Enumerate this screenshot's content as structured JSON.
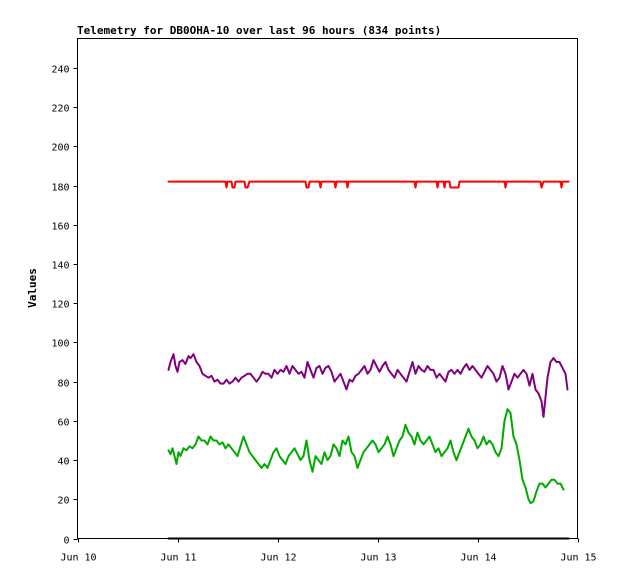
{
  "chart_data": {
    "type": "line",
    "title": "Telemetry for DB0OHA-10 over last 96 hours (834 points)",
    "xlabel": "",
    "ylabel": "Values",
    "x_ticks": [
      "Jun 10",
      "Jun 11",
      "Jun 12",
      "Jun 13",
      "Jun 14",
      "Jun 15"
    ],
    "x_range_days": [
      0,
      5
    ],
    "ylim": [
      0,
      255
    ],
    "y_ticks": [
      0,
      20,
      40,
      60,
      80,
      100,
      120,
      140,
      160,
      180,
      200,
      220,
      240
    ],
    "grid": false,
    "legend": "none",
    "series": [
      {
        "color": "#ff0000",
        "points": [
          [
            0.91,
            182
          ],
          [
            1.4,
            182
          ],
          [
            1.48,
            182
          ],
          [
            1.49,
            179
          ],
          [
            1.5,
            182
          ],
          [
            1.54,
            182
          ],
          [
            1.55,
            179
          ],
          [
            1.57,
            179
          ],
          [
            1.58,
            182
          ],
          [
            1.67,
            182
          ],
          [
            1.68,
            179
          ],
          [
            1.7,
            179
          ],
          [
            1.72,
            182
          ],
          [
            2.28,
            182
          ],
          [
            2.29,
            179
          ],
          [
            2.31,
            179
          ],
          [
            2.32,
            182
          ],
          [
            2.42,
            182
          ],
          [
            2.43,
            179
          ],
          [
            2.44,
            182
          ],
          [
            2.57,
            182
          ],
          [
            2.58,
            179
          ],
          [
            2.59,
            182
          ],
          [
            2.69,
            182
          ],
          [
            2.7,
            179
          ],
          [
            2.71,
            182
          ],
          [
            3.37,
            182
          ],
          [
            3.38,
            179
          ],
          [
            3.39,
            182
          ],
          [
            3.59,
            182
          ],
          [
            3.6,
            179
          ],
          [
            3.61,
            182
          ],
          [
            3.66,
            182
          ],
          [
            3.67,
            179
          ],
          [
            3.68,
            182
          ],
          [
            3.72,
            182
          ],
          [
            3.73,
            179
          ],
          [
            3.75,
            179
          ],
          [
            3.77,
            179
          ],
          [
            3.79,
            179
          ],
          [
            3.81,
            179
          ],
          [
            3.82,
            182
          ],
          [
            4.27,
            182
          ],
          [
            4.28,
            179
          ],
          [
            4.29,
            182
          ],
          [
            4.63,
            182
          ],
          [
            4.64,
            179
          ],
          [
            4.66,
            182
          ],
          [
            4.83,
            182
          ],
          [
            4.84,
            179
          ],
          [
            4.85,
            182
          ],
          [
            4.91,
            182
          ]
        ]
      },
      {
        "color": "#800080",
        "points": [
          [
            0.91,
            86
          ],
          [
            0.93,
            90
          ],
          [
            0.96,
            94
          ],
          [
            0.98,
            88
          ],
          [
            1.0,
            85
          ],
          [
            1.02,
            90
          ],
          [
            1.05,
            91
          ],
          [
            1.08,
            89
          ],
          [
            1.11,
            93
          ],
          [
            1.13,
            92
          ],
          [
            1.16,
            94
          ],
          [
            1.19,
            90
          ],
          [
            1.22,
            88
          ],
          [
            1.25,
            84
          ],
          [
            1.28,
            83
          ],
          [
            1.31,
            82
          ],
          [
            1.34,
            83
          ],
          [
            1.37,
            80
          ],
          [
            1.4,
            81
          ],
          [
            1.43,
            79
          ],
          [
            1.46,
            79
          ],
          [
            1.49,
            81
          ],
          [
            1.52,
            79
          ],
          [
            1.55,
            80
          ],
          [
            1.58,
            82
          ],
          [
            1.61,
            80
          ],
          [
            1.64,
            82
          ],
          [
            1.67,
            83
          ],
          [
            1.7,
            84
          ],
          [
            1.73,
            84
          ],
          [
            1.76,
            82
          ],
          [
            1.79,
            80
          ],
          [
            1.82,
            82
          ],
          [
            1.85,
            85
          ],
          [
            1.88,
            84
          ],
          [
            1.91,
            84
          ],
          [
            1.94,
            82
          ],
          [
            1.97,
            86
          ],
          [
            2.0,
            84
          ],
          [
            2.03,
            86
          ],
          [
            2.06,
            85
          ],
          [
            2.09,
            88
          ],
          [
            2.12,
            84
          ],
          [
            2.15,
            88
          ],
          [
            2.18,
            86
          ],
          [
            2.21,
            84
          ],
          [
            2.24,
            85
          ],
          [
            2.27,
            82
          ],
          [
            2.3,
            90
          ],
          [
            2.33,
            86
          ],
          [
            2.36,
            82
          ],
          [
            2.39,
            87
          ],
          [
            2.42,
            88
          ],
          [
            2.45,
            84
          ],
          [
            2.48,
            87
          ],
          [
            2.51,
            88
          ],
          [
            2.54,
            85
          ],
          [
            2.57,
            80
          ],
          [
            2.6,
            82
          ],
          [
            2.63,
            84
          ],
          [
            2.66,
            80
          ],
          [
            2.69,
            76
          ],
          [
            2.72,
            81
          ],
          [
            2.75,
            80
          ],
          [
            2.78,
            83
          ],
          [
            2.81,
            84
          ],
          [
            2.84,
            86
          ],
          [
            2.87,
            88
          ],
          [
            2.9,
            84
          ],
          [
            2.93,
            86
          ],
          [
            2.96,
            91
          ],
          [
            2.99,
            88
          ],
          [
            3.02,
            85
          ],
          [
            3.05,
            88
          ],
          [
            3.08,
            90
          ],
          [
            3.11,
            86
          ],
          [
            3.14,
            84
          ],
          [
            3.17,
            82
          ],
          [
            3.2,
            86
          ],
          [
            3.23,
            84
          ],
          [
            3.26,
            82
          ],
          [
            3.29,
            80
          ],
          [
            3.32,
            85
          ],
          [
            3.35,
            90
          ],
          [
            3.38,
            84
          ],
          [
            3.41,
            88
          ],
          [
            3.44,
            86
          ],
          [
            3.47,
            85
          ],
          [
            3.5,
            88
          ],
          [
            3.53,
            86
          ],
          [
            3.56,
            86
          ],
          [
            3.59,
            82
          ],
          [
            3.62,
            84
          ],
          [
            3.65,
            82
          ],
          [
            3.68,
            80
          ],
          [
            3.71,
            85
          ],
          [
            3.74,
            86
          ],
          [
            3.77,
            84
          ],
          [
            3.8,
            86
          ],
          [
            3.83,
            84
          ],
          [
            3.86,
            87
          ],
          [
            3.89,
            89
          ],
          [
            3.92,
            86
          ],
          [
            3.95,
            88
          ],
          [
            3.98,
            86
          ],
          [
            4.01,
            84
          ],
          [
            4.04,
            82
          ],
          [
            4.07,
            85
          ],
          [
            4.1,
            88
          ],
          [
            4.13,
            86
          ],
          [
            4.16,
            84
          ],
          [
            4.19,
            80
          ],
          [
            4.22,
            82
          ],
          [
            4.25,
            88
          ],
          [
            4.28,
            84
          ],
          [
            4.31,
            76
          ],
          [
            4.34,
            80
          ],
          [
            4.37,
            84
          ],
          [
            4.4,
            82
          ],
          [
            4.43,
            84
          ],
          [
            4.46,
            86
          ],
          [
            4.49,
            84
          ],
          [
            4.52,
            78
          ],
          [
            4.55,
            84
          ],
          [
            4.58,
            76
          ],
          [
            4.61,
            74
          ],
          [
            4.64,
            70
          ],
          [
            4.66,
            62
          ],
          [
            4.68,
            72
          ],
          [
            4.7,
            82
          ],
          [
            4.73,
            90
          ],
          [
            4.76,
            92
          ],
          [
            4.79,
            90
          ],
          [
            4.82,
            90
          ],
          [
            4.85,
            87
          ],
          [
            4.88,
            84
          ],
          [
            4.9,
            76
          ]
        ]
      },
      {
        "color": "#00aa00",
        "points": [
          [
            0.91,
            45
          ],
          [
            0.93,
            43
          ],
          [
            0.95,
            46
          ],
          [
            0.97,
            42
          ],
          [
            0.99,
            38
          ],
          [
            1.01,
            44
          ],
          [
            1.03,
            42
          ],
          [
            1.06,
            46
          ],
          [
            1.09,
            45
          ],
          [
            1.12,
            47
          ],
          [
            1.15,
            46
          ],
          [
            1.18,
            48
          ],
          [
            1.21,
            52
          ],
          [
            1.24,
            50
          ],
          [
            1.27,
            50
          ],
          [
            1.3,
            48
          ],
          [
            1.33,
            52
          ],
          [
            1.36,
            50
          ],
          [
            1.39,
            50
          ],
          [
            1.42,
            48
          ],
          [
            1.45,
            49
          ],
          [
            1.48,
            46
          ],
          [
            1.51,
            48
          ],
          [
            1.54,
            46
          ],
          [
            1.57,
            44
          ],
          [
            1.6,
            42
          ],
          [
            1.63,
            47
          ],
          [
            1.66,
            52
          ],
          [
            1.69,
            48
          ],
          [
            1.72,
            44
          ],
          [
            1.75,
            42
          ],
          [
            1.78,
            40
          ],
          [
            1.81,
            38
          ],
          [
            1.84,
            36
          ],
          [
            1.87,
            38
          ],
          [
            1.9,
            36
          ],
          [
            1.93,
            40
          ],
          [
            1.96,
            44
          ],
          [
            1.99,
            46
          ],
          [
            2.02,
            42
          ],
          [
            2.05,
            40
          ],
          [
            2.08,
            38
          ],
          [
            2.11,
            42
          ],
          [
            2.14,
            44
          ],
          [
            2.17,
            46
          ],
          [
            2.2,
            43
          ],
          [
            2.23,
            40
          ],
          [
            2.26,
            42
          ],
          [
            2.29,
            50
          ],
          [
            2.32,
            40
          ],
          [
            2.35,
            34
          ],
          [
            2.38,
            42
          ],
          [
            2.41,
            40
          ],
          [
            2.44,
            38
          ],
          [
            2.47,
            44
          ],
          [
            2.5,
            40
          ],
          [
            2.53,
            42
          ],
          [
            2.56,
            48
          ],
          [
            2.59,
            46
          ],
          [
            2.62,
            42
          ],
          [
            2.65,
            50
          ],
          [
            2.68,
            48
          ],
          [
            2.71,
            52
          ],
          [
            2.74,
            44
          ],
          [
            2.77,
            42
          ],
          [
            2.8,
            36
          ],
          [
            2.83,
            40
          ],
          [
            2.86,
            44
          ],
          [
            2.89,
            46
          ],
          [
            2.92,
            48
          ],
          [
            2.95,
            50
          ],
          [
            2.98,
            48
          ],
          [
            3.01,
            44
          ],
          [
            3.04,
            46
          ],
          [
            3.07,
            48
          ],
          [
            3.1,
            52
          ],
          [
            3.13,
            48
          ],
          [
            3.16,
            42
          ],
          [
            3.19,
            46
          ],
          [
            3.22,
            50
          ],
          [
            3.25,
            52
          ],
          [
            3.28,
            58
          ],
          [
            3.31,
            54
          ],
          [
            3.34,
            52
          ],
          [
            3.37,
            48
          ],
          [
            3.4,
            54
          ],
          [
            3.43,
            50
          ],
          [
            3.46,
            48
          ],
          [
            3.49,
            50
          ],
          [
            3.52,
            52
          ],
          [
            3.55,
            48
          ],
          [
            3.58,
            44
          ],
          [
            3.61,
            46
          ],
          [
            3.64,
            42
          ],
          [
            3.67,
            44
          ],
          [
            3.7,
            46
          ],
          [
            3.73,
            50
          ],
          [
            3.76,
            44
          ],
          [
            3.79,
            40
          ],
          [
            3.82,
            44
          ],
          [
            3.85,
            48
          ],
          [
            3.88,
            52
          ],
          [
            3.91,
            56
          ],
          [
            3.94,
            52
          ],
          [
            3.97,
            50
          ],
          [
            4.0,
            46
          ],
          [
            4.03,
            48
          ],
          [
            4.06,
            52
          ],
          [
            4.09,
            48
          ],
          [
            4.12,
            50
          ],
          [
            4.15,
            48
          ],
          [
            4.18,
            44
          ],
          [
            4.21,
            42
          ],
          [
            4.24,
            46
          ],
          [
            4.27,
            60
          ],
          [
            4.3,
            66
          ],
          [
            4.33,
            64
          ],
          [
            4.36,
            52
          ],
          [
            4.39,
            48
          ],
          [
            4.42,
            40
          ],
          [
            4.45,
            30
          ],
          [
            4.48,
            26
          ],
          [
            4.51,
            20
          ],
          [
            4.53,
            18
          ],
          [
            4.56,
            19
          ],
          [
            4.59,
            24
          ],
          [
            4.62,
            28
          ],
          [
            4.65,
            28
          ],
          [
            4.68,
            26
          ],
          [
            4.71,
            28
          ],
          [
            4.74,
            30
          ],
          [
            4.77,
            30
          ],
          [
            4.8,
            28
          ],
          [
            4.83,
            28
          ],
          [
            4.86,
            25
          ]
        ]
      },
      {
        "color": "#000000",
        "points": [
          [
            0.91,
            0
          ],
          [
            4.91,
            0
          ]
        ]
      }
    ]
  }
}
